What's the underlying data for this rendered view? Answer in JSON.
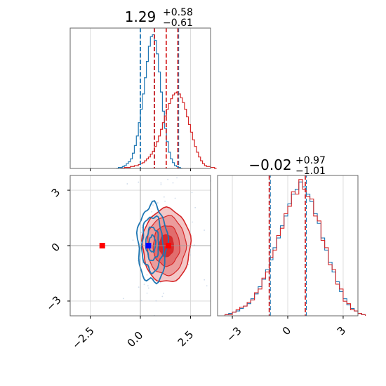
{
  "chart_data": [
    {
      "panel": "marginal-top-left",
      "type": "histogram",
      "title": {
        "median": "1.29",
        "upper": "+0.58",
        "lower": "−0.61"
      },
      "xlim": [
        -3.5,
        3.5
      ],
      "grid": true,
      "series": [
        {
          "color": "#1f77b4",
          "bin_width": 0.1,
          "bin_start": -1.2,
          "counts": [
            0,
            1,
            1,
            2,
            3,
            5,
            7,
            10,
            16,
            24,
            34,
            48,
            62,
            78,
            95,
            112,
            128,
            138,
            140,
            134,
            120,
            101,
            80,
            60,
            42,
            28,
            17,
            10,
            6,
            3,
            2,
            1,
            0
          ],
          "quantile_lines": [
            0.0,
            0.7,
            1.9
          ]
        },
        {
          "color": "#d62728",
          "bin_width": 0.1,
          "bin_start": -1.0,
          "counts": [
            0,
            0,
            1,
            1,
            1,
            2,
            2,
            3,
            3,
            4,
            5,
            6,
            8,
            10,
            12,
            15,
            18,
            23,
            28,
            34,
            41,
            48,
            55,
            62,
            68,
            73,
            77,
            79,
            80,
            78,
            74,
            69,
            62,
            54,
            46,
            38,
            30,
            23,
            17,
            12,
            8,
            5,
            3,
            2,
            2,
            1,
            1,
            0
          ],
          "quantile_lines": [
            0.7,
            1.29,
            1.87
          ]
        }
      ]
    },
    {
      "panel": "joint-bottom-left",
      "type": "contour",
      "xlim": [
        -3.5,
        3.5
      ],
      "ylim": [
        -3.8,
        3.8
      ],
      "xticks": [
        "−2.5",
        "0.0",
        "2.5"
      ],
      "yticks": [
        "3",
        "0",
        "−3"
      ],
      "grid": true,
      "series": [
        {
          "color": "#1f77b4",
          "center": [
            0.6,
            0.1
          ],
          "sigma": [
            0.35,
            1.0
          ],
          "marker": [
            0.4,
            0.0
          ],
          "marker_color": "#0000ff"
        },
        {
          "color": "#d62728",
          "center": [
            1.3,
            0.0
          ],
          "sigma": [
            0.6,
            1.0
          ],
          "marker": [
            1.4,
            0.0
          ],
          "marker_color": "#ff0000"
        }
      ],
      "extra_markers": [
        {
          "x": -1.9,
          "y": 0.0,
          "color": "#ff0000"
        }
      ],
      "crosshair": {
        "x": 0.0,
        "y": 0.0
      }
    },
    {
      "panel": "marginal-bottom-right",
      "type": "histogram",
      "title": {
        "median": "−0.02",
        "upper": "+0.97",
        "lower": "−1.01"
      },
      "xlim": [
        -3.8,
        3.8
      ],
      "xticks": [
        "−3",
        "0",
        "3"
      ],
      "grid": true,
      "quantile_lines": [
        -1.0,
        0.95
      ],
      "series": [
        {
          "color": "#1f77b4",
          "bin_width": 0.2,
          "bin_start": -3.4,
          "counts": [
            1,
            2,
            3,
            4,
            6,
            8,
            10,
            14,
            18,
            24,
            30,
            38,
            46,
            56,
            64,
            74,
            82,
            92,
            100,
            104,
            110,
            106,
            100,
            94,
            84,
            76,
            64,
            54,
            44,
            36,
            28,
            20,
            14,
            9,
            6,
            4,
            2,
            1
          ]
        },
        {
          "color": "#d62728",
          "bin_width": 0.2,
          "bin_start": -3.4,
          "counts": [
            1,
            1,
            3,
            5,
            7,
            8,
            11,
            13,
            19,
            22,
            31,
            36,
            48,
            54,
            66,
            72,
            84,
            90,
            102,
            100,
            112,
            104,
            98,
            96,
            82,
            78,
            62,
            56,
            42,
            38,
            26,
            22,
            12,
            10,
            5,
            4,
            2,
            1
          ]
        }
      ]
    }
  ]
}
